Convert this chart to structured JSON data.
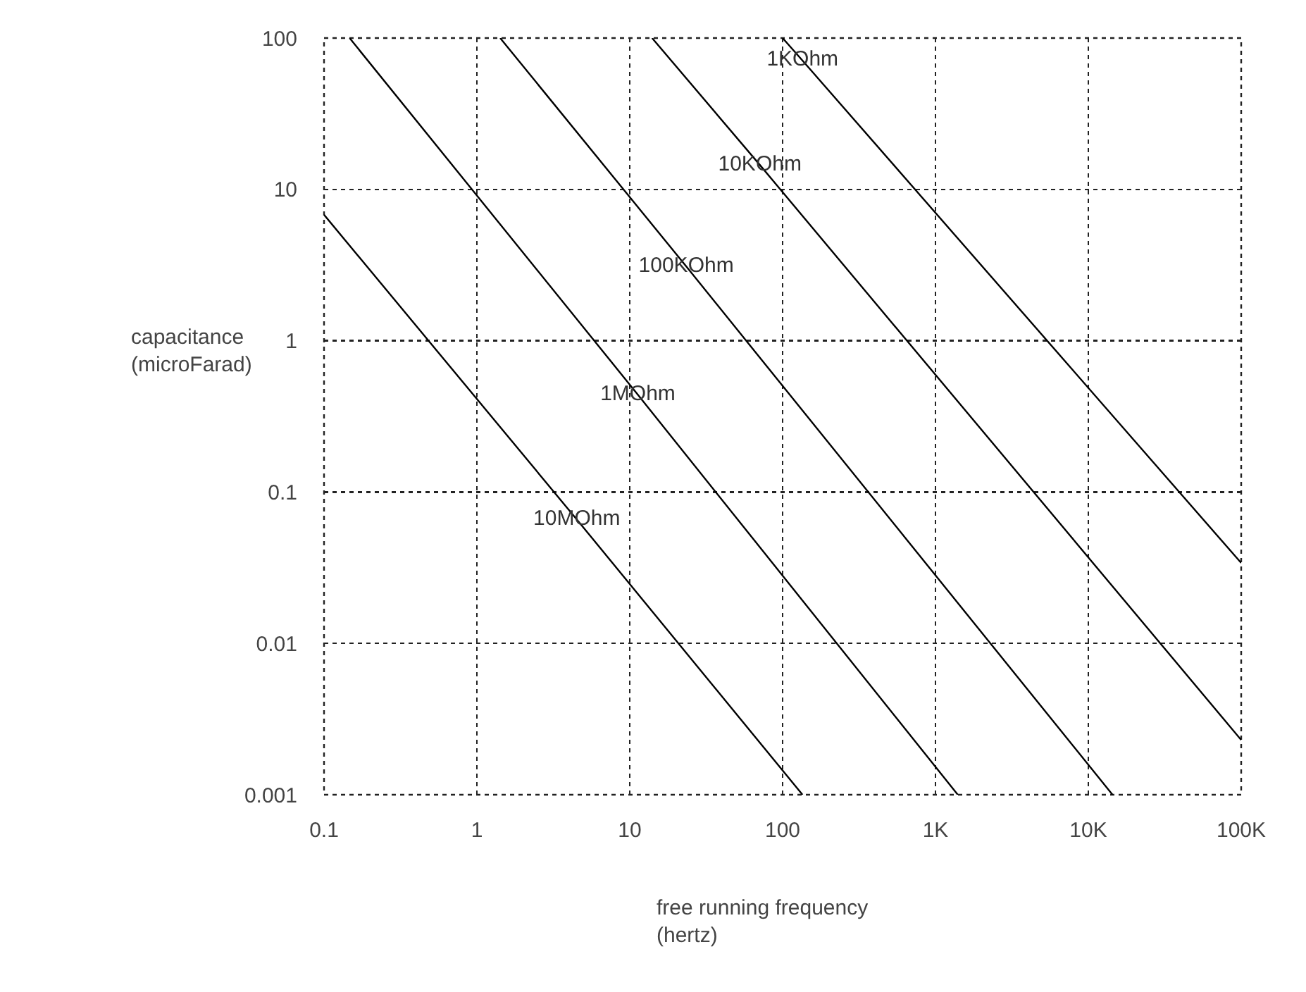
{
  "chart_data": {
    "type": "line",
    "xlabel": "free running frequency\n(hertz)",
    "ylabel": "capacitance\n(microFarad)",
    "log": "xy",
    "grid": true,
    "legend": false,
    "marker": "none",
    "line_style": "solid",
    "xlim": [
      0.1,
      100000
    ],
    "ylim": [
      0.001,
      100
    ],
    "xticks": [
      0.1,
      1,
      10,
      100,
      {
        "value": 1000,
        "label": "1K"
      },
      {
        "value": 10000,
        "label": "10K"
      },
      {
        "value": 100000,
        "label": "100K"
      }
    ],
    "yticks": [
      0.001,
      0.01,
      0.1,
      1,
      10,
      100
    ],
    "series": [
      {
        "name": "1KOhm",
        "color": "#000000",
        "x": [
          100,
          135,
          100000
        ],
        "values": [
          100,
          71,
          0.034
        ]
      },
      {
        "name": "10KOhm",
        "color": "#000000",
        "x": [
          14,
          71,
          100000
        ],
        "values": [
          100,
          14.5,
          0.0023
        ]
      },
      {
        "name": "100KOhm",
        "color": "#000000",
        "x": [
          1.42,
          23.4,
          14400
        ],
        "values": [
          100,
          3.1,
          0.001
        ]
      },
      {
        "name": "1MOhm",
        "color": "#000000",
        "x": [
          0.147,
          11.3,
          1400
        ],
        "values": [
          100,
          0.44,
          0.001
        ]
      },
      {
        "name": "10MOhm",
        "color": "#000000",
        "x": [
          0.1,
          4.5,
          135
        ],
        "values": [
          6.8,
          0.066,
          0.001
        ]
      }
    ]
  }
}
